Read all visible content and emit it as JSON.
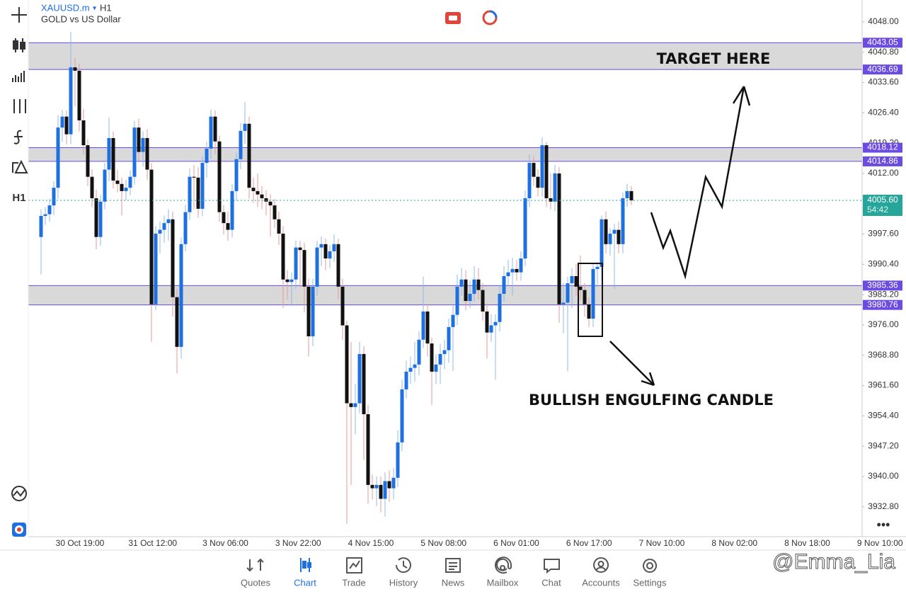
{
  "chart_data": {
    "type": "candlestick",
    "symbol": "XAUUSD.m",
    "timeframe": "H1",
    "description": "GOLD vs US Dollar",
    "ylim": [
      3925.7,
      4053.2
    ],
    "yticks": [
      {
        "value": 4048,
        "label": "4048.00"
      },
      {
        "value": 4040.8,
        "label": "4040.80"
      },
      {
        "value": 4033.6,
        "label": "4033.60"
      },
      {
        "value": 4026.4,
        "label": "4026.40"
      },
      {
        "value": 4019.2,
        "label": "4019.20"
      },
      {
        "value": 4012,
        "label": "4012.00"
      },
      {
        "value": 3997.6,
        "label": "3997.60"
      },
      {
        "value": 3990.4,
        "label": "3990.40"
      },
      {
        "value": 3983.2,
        "label": "3983.20"
      },
      {
        "value": 3976,
        "label": "3976.00"
      },
      {
        "value": 3968.8,
        "label": "3968.80"
      },
      {
        "value": 3961.6,
        "label": "3961.60"
      },
      {
        "value": 3954.4,
        "label": "3954.40"
      },
      {
        "value": 3947.2,
        "label": "3947.20"
      },
      {
        "value": 3940,
        "label": "3940.00"
      },
      {
        "value": 3932.8,
        "label": "3932.80"
      }
    ],
    "x_labels": [
      "30 Oct 19:00",
      "31 Oct 12:00",
      "3 Nov 06:00",
      "3 Nov 22:00",
      "4 Nov 15:00",
      "5 Nov 08:00",
      "6 Nov 01:00",
      "6 Nov 17:00",
      "7 Nov 10:00",
      "8 Nov 02:00",
      "8 Nov 18:00",
      "9 Nov 10:00"
    ],
    "up_color": "#1e6fe0",
    "down_color": "#111111",
    "level_color": "#6b4be0",
    "zones": [
      [
        4043.05,
        4036.69
      ],
      [
        4018.12,
        4014.86
      ],
      [
        3985.36,
        3980.76
      ]
    ],
    "current_price": {
      "value": 4005.6,
      "label": "4005.60"
    },
    "countdown": "54:42",
    "annotations": [
      "TARGET HERE",
      "BULLISH ENGULFING CANDLE"
    ],
    "candles": [
      [
        3996.9,
        4003.5,
        3988.0,
        4001.9
      ],
      [
        4001.9,
        4004.0,
        3999.8,
        4002.3
      ],
      [
        4002.3,
        4006.0,
        4000.5,
        4004.4
      ],
      [
        4004.4,
        4010.2,
        4002.1,
        4008.6
      ],
      [
        4008.6,
        4025.8,
        4006.0,
        4022.9
      ],
      [
        4022.9,
        4027.1,
        4019.5,
        4025.5
      ],
      [
        4025.5,
        4027.0,
        4018.9,
        4021.3
      ],
      [
        4021.3,
        4045.6,
        4019.0,
        4037.2
      ],
      [
        4037.2,
        4039.5,
        4028.0,
        4036.4
      ],
      [
        4036.4,
        4038.0,
        4022.0,
        4024.6
      ],
      [
        4024.6,
        4027.3,
        4016.5,
        4018.7
      ],
      [
        4018.7,
        4020.1,
        4009.0,
        4011.2
      ],
      [
        4011.2,
        4013.0,
        4004.0,
        4006.1
      ],
      [
        4006.1,
        4008.2,
        3994.0,
        3996.9
      ],
      [
        3996.9,
        4006.9,
        3994.8,
        4005.3
      ],
      [
        4005.3,
        4014.5,
        4003.5,
        4012.9
      ],
      [
        4012.9,
        4025.3,
        4010.2,
        4020.4
      ],
      [
        4020.4,
        4022.0,
        4008.4,
        4010.3
      ],
      [
        4010.3,
        4012.8,
        4007.5,
        4009.5
      ],
      [
        4009.5,
        4011.0,
        4002.0,
        4007.8
      ],
      [
        4007.8,
        4010.5,
        4005.6,
        4008.6
      ],
      [
        4008.6,
        4012.7,
        4006.8,
        4011.2
      ],
      [
        4011.2,
        4024.5,
        4009.3,
        4022.9
      ],
      [
        4022.9,
        4025.0,
        4015.0,
        4017.1
      ],
      [
        4017.1,
        4022.0,
        4013.6,
        4020.4
      ],
      [
        4020.4,
        4022.5,
        4010.5,
        4012.9
      ],
      [
        4012.9,
        4014.5,
        3972.0,
        3980.9
      ],
      [
        3980.9,
        3999.5,
        3979.5,
        3997.7
      ],
      [
        3997.7,
        4000.6,
        3993.0,
        3998.6
      ],
      [
        3998.6,
        4002.0,
        3995.5,
        4000.2
      ],
      [
        4000.2,
        4003.5,
        3996.0,
        4001.1
      ],
      [
        4001.1,
        4003.0,
        3978.0,
        3982.6
      ],
      [
        3982.6,
        3984.5,
        3964.5,
        3970.8
      ],
      [
        3970.8,
        3996.8,
        3968.0,
        3995.2
      ],
      [
        3995.2,
        4004.5,
        3993.5,
        4002.8
      ],
      [
        4002.8,
        4013.2,
        4001.0,
        4011.2
      ],
      [
        4011.2,
        4014.0,
        4003.5,
        4011.0
      ],
      [
        4011.0,
        4013.5,
        4001.5,
        4003.6
      ],
      [
        4003.6,
        4016.0,
        4001.8,
        4014.5
      ],
      [
        4014.5,
        4019.5,
        4011.0,
        4017.9
      ],
      [
        4017.9,
        4027.2,
        4015.5,
        4025.5
      ],
      [
        4025.5,
        4027.0,
        4016.5,
        4019.6
      ],
      [
        4019.6,
        4021.0,
        4000.5,
        4002.8
      ],
      [
        4002.8,
        4004.5,
        3997.5,
        4000.2
      ],
      [
        4000.2,
        4003.0,
        3996.0,
        3998.6
      ],
      [
        3998.6,
        4009.5,
        3996.8,
        4007.8
      ],
      [
        4007.8,
        4017.0,
        4005.5,
        4015.4
      ],
      [
        4015.4,
        4024.0,
        4013.0,
        4022.1
      ],
      [
        4022.1,
        4029.0,
        4019.0,
        4023.8
      ],
      [
        4023.8,
        4025.5,
        4006.0,
        4008.6
      ],
      [
        4008.6,
        4011.0,
        4005.0,
        4007.8
      ],
      [
        4007.8,
        4012.0,
        4004.0,
        4007.0
      ],
      [
        4007.0,
        4009.0,
        4003.5,
        4006.1
      ],
      [
        4006.1,
        4008.0,
        4002.0,
        4005.3
      ],
      [
        4005.3,
        4007.0,
        3997.0,
        4004.4
      ],
      [
        4004.4,
        4006.0,
        3999.0,
        4001.1
      ],
      [
        4001.1,
        4003.0,
        3995.0,
        3997.7
      ],
      [
        3997.7,
        3999.5,
        3980.0,
        3986.8
      ],
      [
        3986.8,
        3989.0,
        3982.0,
        3986.2
      ],
      [
        3986.2,
        3988.5,
        3980.5,
        3986.8
      ],
      [
        3986.8,
        3996.0,
        3984.5,
        3994.4
      ],
      [
        3994.4,
        3996.0,
        3985.0,
        3993.8
      ],
      [
        3993.8,
        3995.5,
        3979.0,
        3985.1
      ],
      [
        3985.1,
        3987.0,
        3968.5,
        3973.3
      ],
      [
        3973.3,
        3987.0,
        3971.0,
        3985.1
      ],
      [
        3985.1,
        3996.0,
        3983.0,
        3994.4
      ],
      [
        3994.4,
        3997.0,
        3990.0,
        3995.2
      ],
      [
        3995.2,
        3996.5,
        3989.0,
        3991.8
      ],
      [
        3991.8,
        3995.0,
        3989.5,
        3993.5
      ],
      [
        3993.5,
        3997.5,
        3991.0,
        3995.2
      ],
      [
        3995.2,
        3996.5,
        3982.0,
        3985.1
      ],
      [
        3985.1,
        3987.0,
        3972.5,
        3975.9
      ],
      [
        3975.9,
        3977.0,
        3928.8,
        3957.4
      ],
      [
        3957.4,
        3972.0,
        3938.0,
        3956.5
      ],
      [
        3956.5,
        3962.0,
        3950.0,
        3957.4
      ],
      [
        3957.4,
        3972.0,
        3955.0,
        3969.1
      ],
      [
        3969.1,
        3971.0,
        3944.0,
        3954.8
      ],
      [
        3954.8,
        3957.0,
        3933.5,
        3938.0
      ],
      [
        3938.0,
        3940.5,
        3934.5,
        3937.2
      ],
      [
        3937.2,
        3940.0,
        3933.0,
        3938.0
      ],
      [
        3938.0,
        3940.0,
        3931.5,
        3934.7
      ],
      [
        3934.7,
        3941.0,
        3930.5,
        3938.9
      ],
      [
        3938.9,
        3941.5,
        3934.0,
        3937.2
      ],
      [
        3937.2,
        3942.0,
        3934.5,
        3939.7
      ],
      [
        3939.7,
        3951.0,
        3937.5,
        3948.1
      ],
      [
        3948.1,
        3963.0,
        3946.0,
        3960.7
      ],
      [
        3960.7,
        3967.5,
        3958.5,
        3964.9
      ],
      [
        3964.9,
        3968.5,
        3962.0,
        3965.8
      ],
      [
        3965.8,
        3972.0,
        3962.5,
        3966.6
      ],
      [
        3966.6,
        3974.5,
        3964.0,
        3972.5
      ],
      [
        3972.5,
        3987.5,
        3970.5,
        3979.2
      ],
      [
        3979.2,
        3981.0,
        3968.5,
        3971.6
      ],
      [
        3971.6,
        3973.0,
        3957.0,
        3964.9
      ],
      [
        3964.9,
        3969.0,
        3962.0,
        3966.6
      ],
      [
        3966.6,
        3971.5,
        3962.0,
        3969.1
      ],
      [
        3969.1,
        3972.5,
        3965.5,
        3970.0
      ],
      [
        3970.0,
        3977.5,
        3967.0,
        3975.5
      ],
      [
        3975.5,
        3980.5,
        3965.0,
        3978.4
      ],
      [
        3978.4,
        3988.0,
        3976.0,
        3985.1
      ],
      [
        3985.1,
        3989.5,
        3983.0,
        3986.8
      ],
      [
        3986.8,
        3989.0,
        3979.5,
        3981.7
      ],
      [
        3981.7,
        3986.5,
        3980.0,
        3983.4
      ],
      [
        3983.4,
        3990.0,
        3981.5,
        3986.8
      ],
      [
        3986.8,
        3989.5,
        3982.0,
        3984.3
      ],
      [
        3984.3,
        3986.0,
        3977.0,
        3979.2
      ],
      [
        3979.2,
        3981.0,
        3968.0,
        3974.2
      ],
      [
        3974.2,
        3978.5,
        3972.0,
        3975.9
      ],
      [
        3975.9,
        3978.5,
        3963.0,
        3976.7
      ],
      [
        3976.7,
        3985.5,
        3974.5,
        3983.4
      ],
      [
        3983.4,
        3990.0,
        3981.5,
        3987.6
      ],
      [
        3987.6,
        3991.5,
        3985.5,
        3988.5
      ],
      [
        3988.5,
        3992.0,
        3983.0,
        3989.3
      ],
      [
        3989.3,
        3991.5,
        3986.5,
        3988.5
      ],
      [
        3988.5,
        3993.5,
        3986.5,
        3991.8
      ],
      [
        3991.8,
        4008.0,
        3990.0,
        4006.1
      ],
      [
        4006.1,
        4016.5,
        4004.0,
        4014.5
      ],
      [
        4014.5,
        4016.0,
        4009.0,
        4011.2
      ],
      [
        4011.2,
        4013.0,
        4006.5,
        4008.6
      ],
      [
        4008.6,
        4020.6,
        4006.5,
        4018.7
      ],
      [
        4018.7,
        4019.5,
        4004.0,
        4006.1
      ],
      [
        4006.1,
        4012.0,
        4003.5,
        4005.3
      ],
      [
        4005.3,
        4014.0,
        4003.0,
        4012.0
      ],
      [
        4012.0,
        4013.5,
        3976.5,
        3980.9
      ],
      [
        3980.9,
        3986.0,
        3974.0,
        3981.3
      ],
      [
        3981.3,
        3987.5,
        3965.0,
        3985.9
      ],
      [
        3985.9,
        3989.5,
        3980.0,
        3987.6
      ],
      [
        3987.6,
        3990.5,
        3983.0,
        3985.1
      ],
      [
        3985.1,
        3992.5,
        3982.0,
        3984.3
      ],
      [
        3984.3,
        3986.0,
        3978.0,
        3980.9
      ],
      [
        3980.9,
        3982.5,
        3975.5,
        3977.5
      ],
      [
        3977.5,
        3990.5,
        3975.5,
        3989.3
      ],
      [
        3989.3,
        3991.0,
        3985.0,
        3989.8
      ],
      [
        3989.8,
        4002.0,
        3986.5,
        4001.1
      ],
      [
        4001.1,
        4003.0,
        3993.0,
        3995.2
      ],
      [
        3995.2,
        3999.0,
        3992.5,
        3997.7
      ],
      [
        3997.7,
        4000.0,
        3984.5,
        3998.6
      ],
      [
        3998.6,
        4000.5,
        3993.0,
        3995.2
      ],
      [
        3995.2,
        4007.5,
        3993.0,
        4006.1
      ],
      [
        4006.1,
        4009.5,
        4004.0,
        4007.8
      ],
      [
        4007.8,
        4009.0,
        4004.5,
        4005.6
      ]
    ]
  },
  "nav": [
    "Quotes",
    "Chart",
    "Trade",
    "History",
    "News",
    "Mailbox",
    "Chat",
    "Accounts",
    "Settings"
  ],
  "watermark": "@Emma_Lia"
}
